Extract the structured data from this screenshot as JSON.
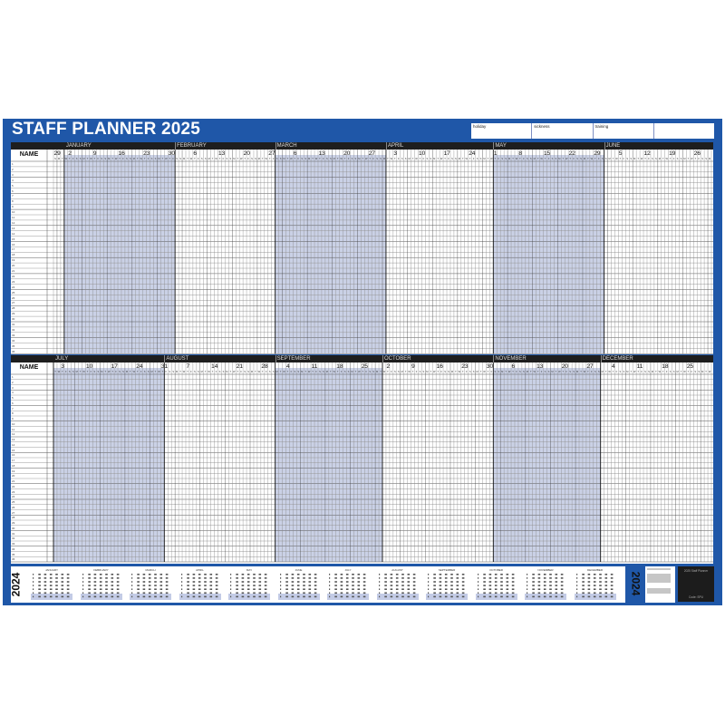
{
  "title": "STAFF PLANNER 2025",
  "legend": [
    "holiday",
    "sickness",
    "training",
    ""
  ],
  "name_label": "NAME",
  "day_letters": [
    "S",
    "M",
    "T",
    "W",
    "T",
    "F",
    "S"
  ],
  "rows": [
    "1",
    "2",
    "3",
    "4",
    "5",
    "6",
    "7",
    "8",
    "9",
    "10",
    "11",
    "12",
    "13",
    "14",
    "15",
    "16",
    "17",
    "18",
    "19",
    "20",
    "21",
    "22",
    "23",
    "24",
    "25",
    "26",
    "27",
    "28",
    "29",
    "30",
    "31",
    "32",
    "33",
    "34",
    "35",
    "36"
  ],
  "halves": [
    {
      "months": [
        {
          "label": "JANUARY",
          "shaded": true
        },
        {
          "label": "FEBRUARY",
          "shaded": false
        },
        {
          "label": "MARCH",
          "shaded": true
        },
        {
          "label": "APRIL",
          "shaded": false
        },
        {
          "label": "MAY",
          "shaded": true
        },
        {
          "label": "JUNE",
          "shaded": false
        }
      ],
      "weeks": [
        "29",
        "2",
        "9",
        "16",
        "23",
        "30",
        "6",
        "13",
        "20",
        "27",
        "6",
        "13",
        "20",
        "27",
        "3",
        "10",
        "17",
        "24",
        "1",
        "8",
        "15",
        "22",
        "29",
        "5",
        "12",
        "19",
        "26"
      ]
    },
    {
      "months": [
        {
          "label": "JULY",
          "shaded": true
        },
        {
          "label": "AUGUST",
          "shaded": false
        },
        {
          "label": "SEPTEMBER",
          "shaded": true
        },
        {
          "label": "OCTOBER",
          "shaded": false
        },
        {
          "label": "NOVEMBER",
          "shaded": true
        },
        {
          "label": "DECEMBER",
          "shaded": false
        }
      ],
      "weeks": [
        "3",
        "10",
        "17",
        "24",
        "31",
        "7",
        "14",
        "21",
        "28",
        "4",
        "11",
        "18",
        "25",
        "2",
        "9",
        "16",
        "23",
        "30",
        "6",
        "13",
        "20",
        "27",
        "4",
        "11",
        "18",
        "25"
      ]
    }
  ],
  "year_strip": {
    "year_left": "2024",
    "year_right": "2024",
    "months": [
      "JANUARY",
      "FEBRUARY",
      "MARCH",
      "APRIL",
      "MAY",
      "JUNE",
      "JULY",
      "AUGUST",
      "SEPTEMBER",
      "OCTOBER",
      "NOVEMBER",
      "DECEMBER"
    ]
  },
  "product_box": {
    "name": "2025 Staff Planner",
    "code": "Code: SPU"
  },
  "colors": {
    "panel": "#1f57a8",
    "header": "#1e1e1e",
    "shade": "#b8c2de"
  }
}
